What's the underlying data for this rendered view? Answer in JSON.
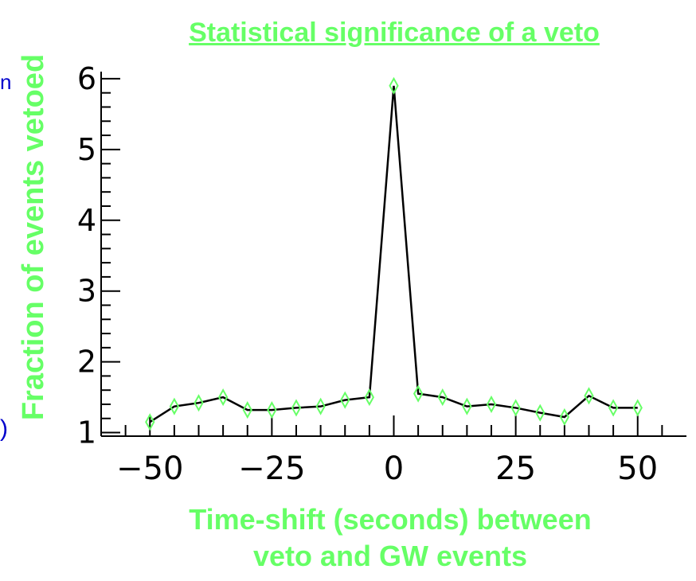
{
  "edge_text": {
    "left_top": "n",
    "left_bottom": ")"
  },
  "chart_data": {
    "type": "line",
    "title": "Statistical significance of a veto",
    "xlabel": "Time-shift (seconds) between\nveto and GW events",
    "ylabel": "Fraction of events vetoed",
    "xlim": [
      -60,
      60
    ],
    "ylim": [
      0.95,
      6.1
    ],
    "xticks": [
      -50,
      -25,
      0,
      25,
      50
    ],
    "xtick_labels": [
      "−50",
      "−25",
      "0",
      "25",
      "50"
    ],
    "yticks": [
      1,
      2,
      3,
      4,
      5,
      6
    ],
    "ytick_labels": [
      "1",
      "2",
      "3",
      "4",
      "5",
      "6"
    ],
    "grid": false,
    "series": [
      {
        "x": [
          -50,
          -45,
          -40,
          -35,
          -30,
          -25,
          -20,
          -15,
          -10,
          -5,
          0,
          5,
          10,
          15,
          20,
          25,
          30,
          35,
          40,
          45,
          50
        ],
        "y": [
          1.15,
          1.37,
          1.42,
          1.5,
          1.32,
          1.32,
          1.35,
          1.37,
          1.46,
          1.5,
          5.9,
          1.55,
          1.5,
          1.37,
          1.4,
          1.35,
          1.28,
          1.22,
          1.52,
          1.35,
          1.35
        ],
        "line_color": "#000000",
        "marker": "diamond",
        "marker_color": "#66ff66"
      }
    ]
  }
}
